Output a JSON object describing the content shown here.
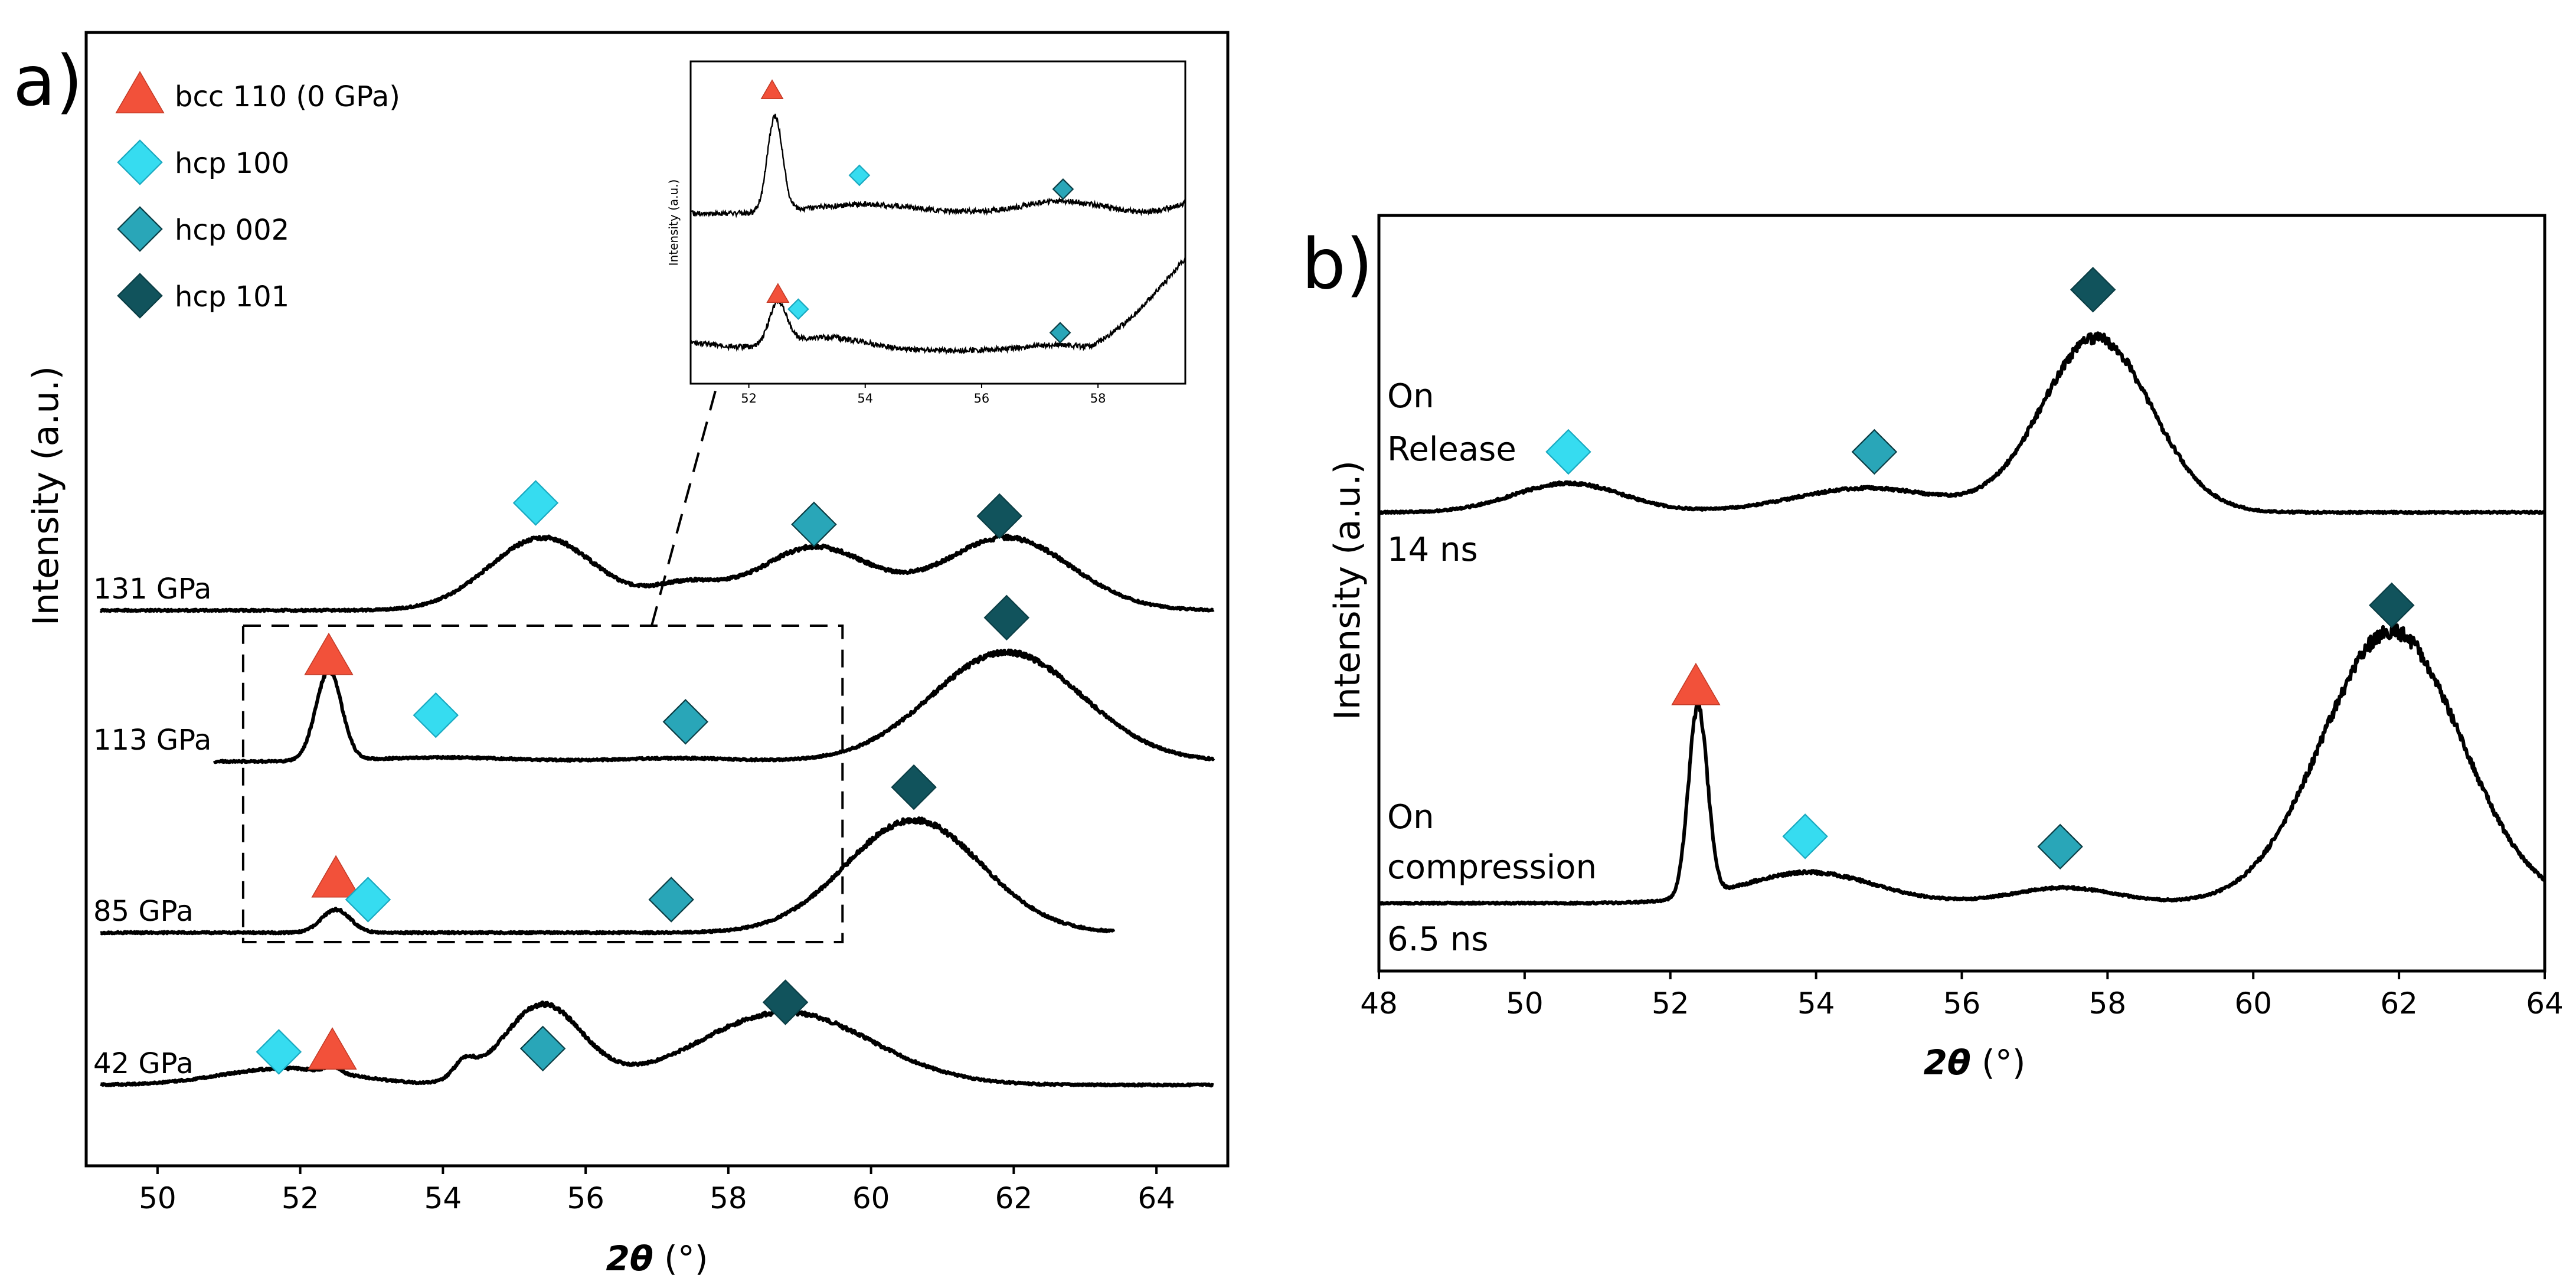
{
  "figure": {
    "panel_a_letter": "a)",
    "panel_b_letter": "b)"
  },
  "chart_data": [
    {
      "type": "line",
      "panel": "a",
      "title": "",
      "xlabel_main": "2θ",
      "xlabel_unit": " (°)",
      "ylabel": "Intensity (a.u.)",
      "xlim": [
        49,
        65
      ],
      "xticks": [
        50,
        52,
        54,
        56,
        58,
        60,
        62,
        64
      ],
      "tick_labels": [
        "50",
        "52",
        "54",
        "56",
        "58",
        "60",
        "62",
        "64"
      ],
      "colors": {
        "bcc110": "#f2513a",
        "hcp100": "#36dcf0",
        "hcp002": "#29a6b8",
        "hcp101": "#11535c"
      },
      "legend": [
        {
          "label": "bcc 110 (0 GPa)",
          "marker": "triangle",
          "icon": "red-triangle-icon",
          "color": "#f2513a"
        },
        {
          "label": "hcp 100",
          "marker": "diamond",
          "icon": "light-cyan-diamond-icon",
          "color": "#36dcf0"
        },
        {
          "label": "hcp 002",
          "marker": "diamond",
          "icon": "teal-diamond-icon",
          "color": "#29a6b8"
        },
        {
          "label": "hcp 101",
          "marker": "diamond",
          "icon": "dark-teal-diamond-icon",
          "color": "#11535c"
        }
      ],
      "series": [
        {
          "name": "131 GPa",
          "baseline": 0.0,
          "peaks": [
            {
              "x": 55.4,
              "h": 0.22,
              "w": 0.75,
              "id": "hcp100"
            },
            {
              "x": 57.4,
              "h": 0.07,
              "w": 0.5
            },
            {
              "x": 59.2,
              "h": 0.19,
              "w": 0.8,
              "id": "hcp002"
            },
            {
              "x": 61.9,
              "h": 0.22,
              "w": 0.9,
              "id": "hcp101"
            }
          ],
          "markers": [
            {
              "type": "hcp100",
              "x": 55.3,
              "y": 0.325
            },
            {
              "type": "hcp002",
              "x": 59.2,
              "y": 0.26
            },
            {
              "type": "hcp101",
              "x": 61.8,
              "y": 0.285
            }
          ]
        },
        {
          "name": "113 GPa",
          "baseline": 0.0,
          "peaks": [
            {
              "x": 52.4,
              "h": 0.27,
              "w": 0.18,
              "id": "bcc110"
            },
            {
              "x": 54.0,
              "h": 0.012,
              "w": 1.0
            },
            {
              "x": 57.3,
              "h": 0.01,
              "w": 0.8
            },
            {
              "x": 61.9,
              "h": 0.33,
              "w": 1.05,
              "id": "hcp101"
            }
          ],
          "markers": [
            {
              "type": "bcc110",
              "x": 52.4,
              "y": 0.315
            },
            {
              "type": "hcp100",
              "x": 53.9,
              "y": 0.14
            },
            {
              "type": "hcp002",
              "x": 57.4,
              "y": 0.12
            },
            {
              "type": "hcp101",
              "x": 61.9,
              "y": 0.435
            }
          ]
        },
        {
          "name": "85 GPa",
          "baseline": 0.0,
          "peaks": [
            {
              "x": 52.5,
              "h": 0.07,
              "w": 0.2,
              "id": "bcc110"
            },
            {
              "x": 60.6,
              "h": 0.34,
              "w": 0.95,
              "id": "hcp101"
            }
          ],
          "markers": [
            {
              "type": "bcc110",
              "x": 52.5,
              "y": 0.16
            },
            {
              "type": "hcp100",
              "x": 52.95,
              "y": 0.1
            },
            {
              "type": "hcp002",
              "x": 57.2,
              "y": 0.1
            },
            {
              "type": "hcp101",
              "x": 60.6,
              "y": 0.44
            }
          ]
        },
        {
          "name": "42 GPa",
          "baseline": 0.0,
          "peaks": [
            {
              "x": 51.8,
              "h": 0.05,
              "w": 0.9
            },
            {
              "x": 52.45,
              "h": 0.02,
              "w": 0.1,
              "id": "bcc110"
            },
            {
              "x": 54.3,
              "h": 0.05,
              "w": 0.15
            },
            {
              "x": 55.4,
              "h": 0.24,
              "w": 0.55,
              "id": "hcp002"
            },
            {
              "x": 58.8,
              "h": 0.22,
              "w": 1.2,
              "id": "hcp101"
            }
          ],
          "markers": [
            {
              "type": "hcp100",
              "x": 51.7,
              "y": 0.1
            },
            {
              "type": "bcc110",
              "x": 52.45,
              "y": 0.1
            },
            {
              "type": "hcp002",
              "x": 55.4,
              "y": 0.11
            },
            {
              "type": "hcp101",
              "x": 58.8,
              "y": 0.25
            }
          ]
        }
      ],
      "zoom_box": {
        "x": [
          51.2,
          59.6
        ],
        "series": [
          "113 GPa",
          "85 GPa"
        ]
      },
      "inset": {
        "ylabel": "Intensity (a.u.)",
        "xlim": [
          51.0,
          59.5
        ],
        "xticks": [
          52,
          54,
          56,
          58
        ],
        "tick_labels": [
          "52",
          "54",
          "56",
          "58"
        ],
        "traces": [
          {
            "name": "113 GPa",
            "rise_from": 58.8,
            "rise_to": 0.07,
            "peaks": [
              {
                "x": 52.45,
                "h": 0.62,
                "w": 0.13
              },
              {
                "x": 54.0,
                "h": 0.06,
                "w": 0.9
              },
              {
                "x": 57.4,
                "h": 0.08,
                "w": 0.7
              }
            ],
            "markers": [
              {
                "type": "bcc110",
                "x": 52.4,
                "y": 0.8
              },
              {
                "type": "hcp100",
                "x": 53.9,
                "y": 0.25
              },
              {
                "type": "hcp002",
                "x": 57.4,
                "y": 0.16
              }
            ]
          },
          {
            "name": "85 GPa",
            "rise_from": 57.8,
            "rise_to": 0.82,
            "peaks": [
              {
                "x": 52.5,
                "h": 0.38,
                "w": 0.15
              },
              {
                "x": 53.3,
                "h": 0.12,
                "w": 0.7
              },
              {
                "x": 57.3,
                "h": 0.05,
                "w": 0.6
              }
            ],
            "markers": [
              {
                "type": "bcc110",
                "x": 52.5,
                "y": 0.5
              },
              {
                "type": "hcp100",
                "x": 52.85,
                "y": 0.37
              },
              {
                "type": "hcp002",
                "x": 57.35,
                "y": 0.16
              }
            ]
          }
        ]
      }
    },
    {
      "type": "line",
      "panel": "b",
      "title": "",
      "xlabel_main": "2θ",
      "xlabel_unit": " (°)",
      "ylabel": "Intensity (a.u.)",
      "xlim": [
        48,
        64
      ],
      "xticks": [
        48,
        50,
        52,
        54,
        56,
        58,
        60,
        62,
        64
      ],
      "tick_labels": [
        "48",
        "50",
        "52",
        "54",
        "56",
        "58",
        "60",
        "62",
        "64"
      ],
      "series": [
        {
          "name": "On Release",
          "label_line1": "On",
          "label_line2": "Release",
          "time": "14 ns",
          "peaks": [
            {
              "x": 50.6,
              "h": 0.06,
              "w": 0.75,
              "id": "hcp100"
            },
            {
              "x": 54.7,
              "h": 0.05,
              "w": 1.0,
              "id": "hcp002"
            },
            {
              "x": 57.85,
              "h": 0.36,
              "w": 0.75,
              "id": "hcp101"
            }
          ],
          "markers": [
            {
              "type": "hcp100",
              "x": 50.6,
              "y": 0.125
            },
            {
              "type": "hcp002",
              "x": 54.8,
              "y": 0.125
            },
            {
              "type": "hcp101",
              "x": 57.8,
              "y": 0.46
            }
          ]
        },
        {
          "name": "On compression",
          "label_line1": "On",
          "label_line2": "compression",
          "time": "6.5 ns",
          "peaks": [
            {
              "x": 52.38,
              "h": 0.37,
              "w": 0.13,
              "id": "bcc110"
            },
            {
              "x": 53.9,
              "h": 0.06,
              "w": 0.9,
              "id": "hcp100"
            },
            {
              "x": 57.4,
              "h": 0.03,
              "w": 0.7,
              "id": "hcp002"
            },
            {
              "x": 61.9,
              "h": 0.53,
              "w": 0.95,
              "id": "hcp101"
            }
          ],
          "markers": [
            {
              "type": "bcc110",
              "x": 52.35,
              "y": 0.42
            },
            {
              "type": "hcp100",
              "x": 53.85,
              "y": 0.13
            },
            {
              "type": "hcp002",
              "x": 57.35,
              "y": 0.11
            },
            {
              "type": "hcp101",
              "x": 61.9,
              "y": 0.58
            }
          ]
        }
      ]
    }
  ]
}
